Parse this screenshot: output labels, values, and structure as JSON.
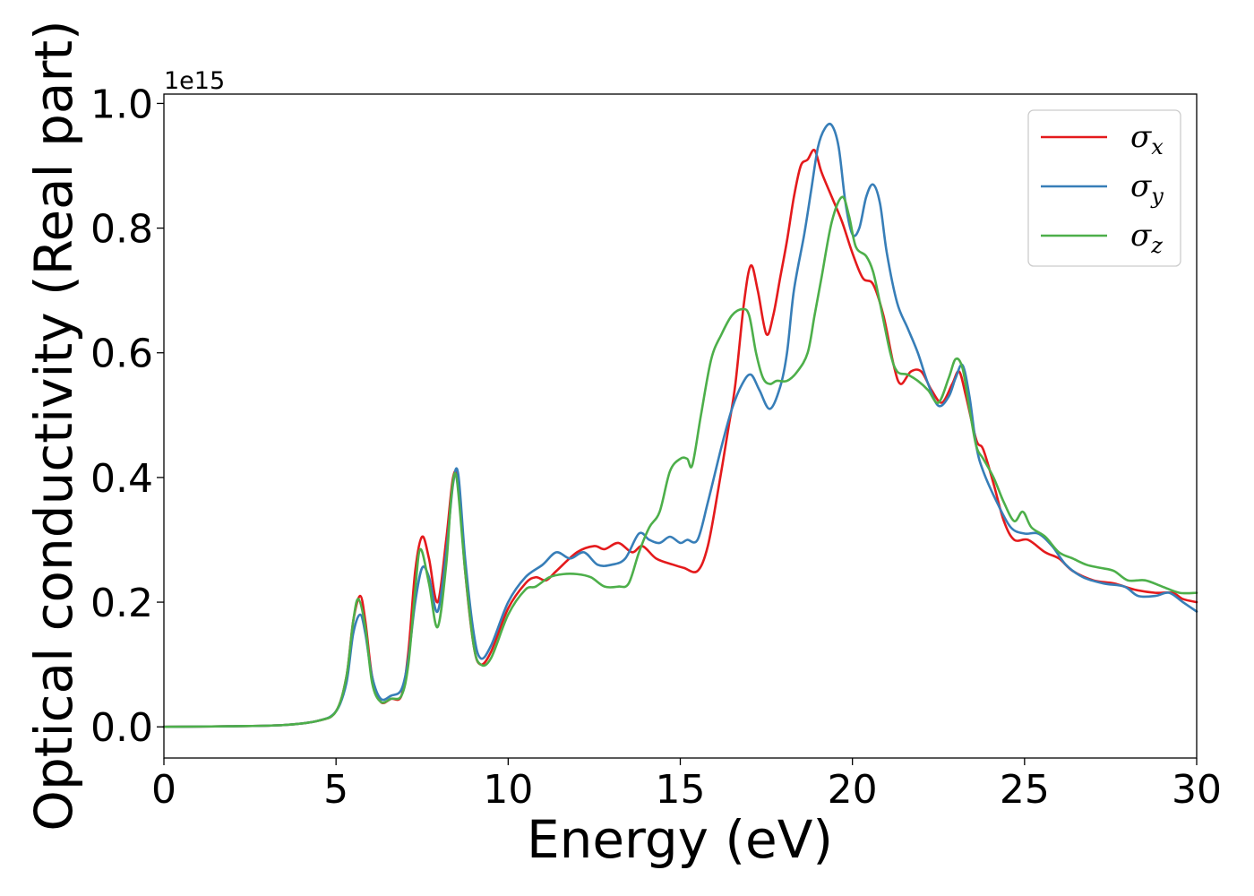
{
  "chart_data": {
    "type": "line",
    "title": "",
    "xlabel": "Energy (eV)",
    "ylabel": "Optical conductivity (Real part)",
    "y_offset_label": "1e15",
    "xlim": [
      0,
      30
    ],
    "ylim": [
      -0.05,
      1.015
    ],
    "x_ticks": [
      0,
      5,
      10,
      15,
      20,
      25,
      30
    ],
    "x_tick_labels": [
      "0",
      "5",
      "10",
      "15",
      "20",
      "25",
      "30"
    ],
    "y_ticks": [
      0.0,
      0.2,
      0.4,
      0.6,
      0.8,
      1.0
    ],
    "y_tick_labels": [
      "0.0",
      "0.2",
      "0.4",
      "0.6",
      "0.8",
      "1.0"
    ],
    "grid": false,
    "legend_position": "top-right",
    "series": [
      {
        "name": "σx",
        "symbol": "σ",
        "subscript": "x",
        "color": "#e41a1c",
        "points": [
          [
            0,
            0
          ],
          [
            2,
            0.001
          ],
          [
            3.5,
            0.003
          ],
          [
            4.5,
            0.01
          ],
          [
            5.0,
            0.025
          ],
          [
            5.3,
            0.08
          ],
          [
            5.5,
            0.17
          ],
          [
            5.7,
            0.21
          ],
          [
            5.85,
            0.17
          ],
          [
            6.05,
            0.08
          ],
          [
            6.3,
            0.04
          ],
          [
            6.6,
            0.045
          ],
          [
            6.9,
            0.05
          ],
          [
            7.1,
            0.12
          ],
          [
            7.3,
            0.25
          ],
          [
            7.5,
            0.305
          ],
          [
            7.7,
            0.27
          ],
          [
            7.95,
            0.2
          ],
          [
            8.2,
            0.3
          ],
          [
            8.4,
            0.4
          ],
          [
            8.55,
            0.39
          ],
          [
            8.75,
            0.25
          ],
          [
            9.0,
            0.13
          ],
          [
            9.2,
            0.1
          ],
          [
            9.5,
            0.12
          ],
          [
            10.0,
            0.19
          ],
          [
            10.5,
            0.23
          ],
          [
            10.8,
            0.24
          ],
          [
            11.1,
            0.235
          ],
          [
            11.4,
            0.25
          ],
          [
            12.0,
            0.28
          ],
          [
            12.5,
            0.29
          ],
          [
            12.8,
            0.285
          ],
          [
            13.2,
            0.295
          ],
          [
            13.6,
            0.28
          ],
          [
            13.9,
            0.29
          ],
          [
            14.3,
            0.27
          ],
          [
            14.8,
            0.26
          ],
          [
            15.1,
            0.255
          ],
          [
            15.5,
            0.25
          ],
          [
            15.8,
            0.29
          ],
          [
            16.1,
            0.38
          ],
          [
            16.4,
            0.48
          ],
          [
            16.6,
            0.55
          ],
          [
            16.85,
            0.68
          ],
          [
            17.05,
            0.74
          ],
          [
            17.25,
            0.7
          ],
          [
            17.5,
            0.63
          ],
          [
            17.7,
            0.66
          ],
          [
            17.9,
            0.72
          ],
          [
            18.1,
            0.78
          ],
          [
            18.3,
            0.85
          ],
          [
            18.5,
            0.9
          ],
          [
            18.7,
            0.91
          ],
          [
            18.9,
            0.925
          ],
          [
            19.1,
            0.89
          ],
          [
            19.4,
            0.85
          ],
          [
            19.7,
            0.81
          ],
          [
            20.0,
            0.76
          ],
          [
            20.3,
            0.72
          ],
          [
            20.6,
            0.71
          ],
          [
            20.9,
            0.66
          ],
          [
            21.2,
            0.58
          ],
          [
            21.4,
            0.55
          ],
          [
            21.7,
            0.57
          ],
          [
            22.0,
            0.57
          ],
          [
            22.3,
            0.54
          ],
          [
            22.6,
            0.52
          ],
          [
            22.9,
            0.55
          ],
          [
            23.1,
            0.57
          ],
          [
            23.3,
            0.53
          ],
          [
            23.6,
            0.46
          ],
          [
            23.8,
            0.445
          ],
          [
            24.1,
            0.39
          ],
          [
            24.4,
            0.33
          ],
          [
            24.7,
            0.3
          ],
          [
            25.1,
            0.3
          ],
          [
            25.6,
            0.28
          ],
          [
            26.0,
            0.27
          ],
          [
            26.4,
            0.25
          ],
          [
            27.0,
            0.235
          ],
          [
            27.6,
            0.23
          ],
          [
            28.2,
            0.22
          ],
          [
            28.8,
            0.215
          ],
          [
            29.3,
            0.215
          ],
          [
            29.6,
            0.205
          ],
          [
            30.0,
            0.2
          ]
        ]
      },
      {
        "name": "σy",
        "symbol": "σ",
        "subscript": "y",
        "color": "#377eb8",
        "points": [
          [
            0,
            0
          ],
          [
            2,
            0.001
          ],
          [
            3.5,
            0.003
          ],
          [
            4.5,
            0.01
          ],
          [
            5.0,
            0.025
          ],
          [
            5.3,
            0.07
          ],
          [
            5.5,
            0.15
          ],
          [
            5.7,
            0.18
          ],
          [
            5.85,
            0.15
          ],
          [
            6.05,
            0.08
          ],
          [
            6.3,
            0.045
          ],
          [
            6.6,
            0.05
          ],
          [
            6.9,
            0.06
          ],
          [
            7.1,
            0.11
          ],
          [
            7.3,
            0.2
          ],
          [
            7.5,
            0.255
          ],
          [
            7.7,
            0.24
          ],
          [
            7.95,
            0.185
          ],
          [
            8.2,
            0.28
          ],
          [
            8.4,
            0.39
          ],
          [
            8.55,
            0.405
          ],
          [
            8.75,
            0.27
          ],
          [
            9.0,
            0.15
          ],
          [
            9.2,
            0.11
          ],
          [
            9.5,
            0.13
          ],
          [
            10.0,
            0.2
          ],
          [
            10.5,
            0.24
          ],
          [
            11.0,
            0.26
          ],
          [
            11.4,
            0.28
          ],
          [
            11.8,
            0.27
          ],
          [
            12.2,
            0.28
          ],
          [
            12.6,
            0.26
          ],
          [
            13.0,
            0.26
          ],
          [
            13.4,
            0.27
          ],
          [
            13.8,
            0.31
          ],
          [
            14.1,
            0.3
          ],
          [
            14.4,
            0.295
          ],
          [
            14.7,
            0.305
          ],
          [
            15.0,
            0.295
          ],
          [
            15.2,
            0.3
          ],
          [
            15.5,
            0.3
          ],
          [
            15.8,
            0.36
          ],
          [
            16.2,
            0.45
          ],
          [
            16.5,
            0.51
          ],
          [
            16.8,
            0.55
          ],
          [
            17.05,
            0.565
          ],
          [
            17.3,
            0.54
          ],
          [
            17.6,
            0.51
          ],
          [
            17.9,
            0.545
          ],
          [
            18.1,
            0.6
          ],
          [
            18.3,
            0.7
          ],
          [
            18.6,
            0.79
          ],
          [
            18.8,
            0.86
          ],
          [
            19.0,
            0.93
          ],
          [
            19.2,
            0.96
          ],
          [
            19.4,
            0.965
          ],
          [
            19.6,
            0.93
          ],
          [
            19.8,
            0.84
          ],
          [
            20.0,
            0.79
          ],
          [
            20.2,
            0.8
          ],
          [
            20.4,
            0.85
          ],
          [
            20.6,
            0.87
          ],
          [
            20.8,
            0.84
          ],
          [
            21.0,
            0.76
          ],
          [
            21.3,
            0.68
          ],
          [
            21.6,
            0.64
          ],
          [
            21.9,
            0.6
          ],
          [
            22.2,
            0.55
          ],
          [
            22.5,
            0.515
          ],
          [
            22.8,
            0.53
          ],
          [
            23.0,
            0.56
          ],
          [
            23.2,
            0.58
          ],
          [
            23.4,
            0.53
          ],
          [
            23.6,
            0.45
          ],
          [
            23.8,
            0.41
          ],
          [
            24.2,
            0.36
          ],
          [
            24.6,
            0.32
          ],
          [
            25.0,
            0.31
          ],
          [
            25.4,
            0.31
          ],
          [
            25.8,
            0.29
          ],
          [
            26.2,
            0.26
          ],
          [
            26.7,
            0.24
          ],
          [
            27.3,
            0.23
          ],
          [
            27.9,
            0.225
          ],
          [
            28.3,
            0.21
          ],
          [
            28.8,
            0.21
          ],
          [
            29.2,
            0.215
          ],
          [
            29.6,
            0.2
          ],
          [
            30.0,
            0.185
          ]
        ]
      },
      {
        "name": "σz",
        "symbol": "σ",
        "subscript": "z",
        "color": "#4daf4a",
        "points": [
          [
            0,
            0
          ],
          [
            2,
            0.001
          ],
          [
            3.5,
            0.003
          ],
          [
            4.5,
            0.01
          ],
          [
            5.0,
            0.025
          ],
          [
            5.3,
            0.08
          ],
          [
            5.5,
            0.17
          ],
          [
            5.65,
            0.205
          ],
          [
            5.85,
            0.16
          ],
          [
            6.05,
            0.07
          ],
          [
            6.3,
            0.04
          ],
          [
            6.6,
            0.045
          ],
          [
            6.9,
            0.05
          ],
          [
            7.1,
            0.1
          ],
          [
            7.3,
            0.22
          ],
          [
            7.45,
            0.285
          ],
          [
            7.7,
            0.23
          ],
          [
            7.95,
            0.16
          ],
          [
            8.2,
            0.26
          ],
          [
            8.35,
            0.37
          ],
          [
            8.5,
            0.4
          ],
          [
            8.75,
            0.25
          ],
          [
            9.0,
            0.13
          ],
          [
            9.2,
            0.1
          ],
          [
            9.5,
            0.11
          ],
          [
            10.0,
            0.18
          ],
          [
            10.5,
            0.22
          ],
          [
            10.8,
            0.225
          ],
          [
            11.2,
            0.24
          ],
          [
            11.6,
            0.245
          ],
          [
            12.0,
            0.245
          ],
          [
            12.4,
            0.24
          ],
          [
            12.8,
            0.225
          ],
          [
            13.2,
            0.225
          ],
          [
            13.5,
            0.23
          ],
          [
            13.8,
            0.28
          ],
          [
            14.1,
            0.32
          ],
          [
            14.4,
            0.345
          ],
          [
            14.7,
            0.41
          ],
          [
            15.0,
            0.43
          ],
          [
            15.2,
            0.43
          ],
          [
            15.35,
            0.42
          ],
          [
            15.6,
            0.5
          ],
          [
            15.9,
            0.59
          ],
          [
            16.2,
            0.63
          ],
          [
            16.5,
            0.66
          ],
          [
            16.8,
            0.67
          ],
          [
            17.0,
            0.66
          ],
          [
            17.2,
            0.6
          ],
          [
            17.4,
            0.56
          ],
          [
            17.6,
            0.55
          ],
          [
            17.8,
            0.555
          ],
          [
            18.1,
            0.555
          ],
          [
            18.4,
            0.57
          ],
          [
            18.7,
            0.6
          ],
          [
            18.9,
            0.66
          ],
          [
            19.1,
            0.72
          ],
          [
            19.4,
            0.81
          ],
          [
            19.7,
            0.85
          ],
          [
            19.9,
            0.82
          ],
          [
            20.1,
            0.77
          ],
          [
            20.4,
            0.755
          ],
          [
            20.6,
            0.73
          ],
          [
            20.8,
            0.68
          ],
          [
            21.1,
            0.6
          ],
          [
            21.3,
            0.57
          ],
          [
            21.6,
            0.565
          ],
          [
            21.9,
            0.555
          ],
          [
            22.2,
            0.54
          ],
          [
            22.5,
            0.52
          ],
          [
            22.8,
            0.56
          ],
          [
            23.0,
            0.59
          ],
          [
            23.2,
            0.575
          ],
          [
            23.4,
            0.51
          ],
          [
            23.6,
            0.45
          ],
          [
            23.8,
            0.43
          ],
          [
            24.1,
            0.4
          ],
          [
            24.4,
            0.36
          ],
          [
            24.7,
            0.33
          ],
          [
            24.95,
            0.345
          ],
          [
            25.2,
            0.32
          ],
          [
            25.6,
            0.305
          ],
          [
            26.0,
            0.28
          ],
          [
            26.4,
            0.27
          ],
          [
            26.8,
            0.26
          ],
          [
            27.2,
            0.255
          ],
          [
            27.6,
            0.25
          ],
          [
            28.0,
            0.235
          ],
          [
            28.5,
            0.235
          ],
          [
            29.0,
            0.225
          ],
          [
            29.5,
            0.215
          ],
          [
            30.0,
            0.215
          ]
        ]
      }
    ]
  }
}
